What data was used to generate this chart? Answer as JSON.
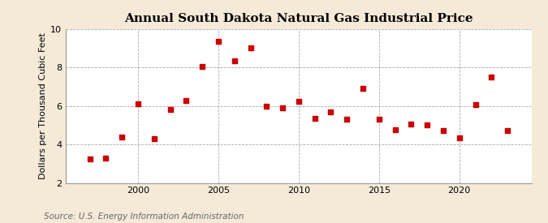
{
  "title": "Annual South Dakota Natural Gas Industrial Price",
  "ylabel": "Dollars per Thousand Cubic Feet",
  "source": "Source: U.S. Energy Information Administration",
  "background_color": "#f5ead8",
  "plot_bg_color": "#ffffff",
  "years": [
    1997,
    1998,
    1999,
    2000,
    2001,
    2002,
    2003,
    2004,
    2005,
    2006,
    2007,
    2008,
    2009,
    2010,
    2011,
    2012,
    2013,
    2014,
    2015,
    2016,
    2017,
    2018,
    2019,
    2020,
    2021,
    2022,
    2023
  ],
  "values": [
    3.25,
    3.3,
    4.4,
    6.1,
    4.3,
    5.8,
    6.3,
    8.05,
    9.35,
    8.35,
    9.0,
    6.0,
    5.9,
    6.25,
    5.35,
    5.7,
    5.3,
    6.9,
    5.3,
    4.75,
    5.05,
    5.0,
    4.7,
    4.35,
    6.05,
    7.5,
    4.7
  ],
  "marker_color": "#cc0000",
  "marker_size": 18,
  "xlim": [
    1995.5,
    2024.5
  ],
  "ylim": [
    2,
    10
  ],
  "yticks": [
    2,
    4,
    6,
    8,
    10
  ],
  "xticks": [
    2000,
    2005,
    2010,
    2015,
    2020
  ],
  "grid_color": "#aaaaaa",
  "vgrid_color": "#aaaaaa",
  "title_fontsize": 11,
  "label_fontsize": 8,
  "tick_fontsize": 8,
  "source_fontsize": 7.5
}
